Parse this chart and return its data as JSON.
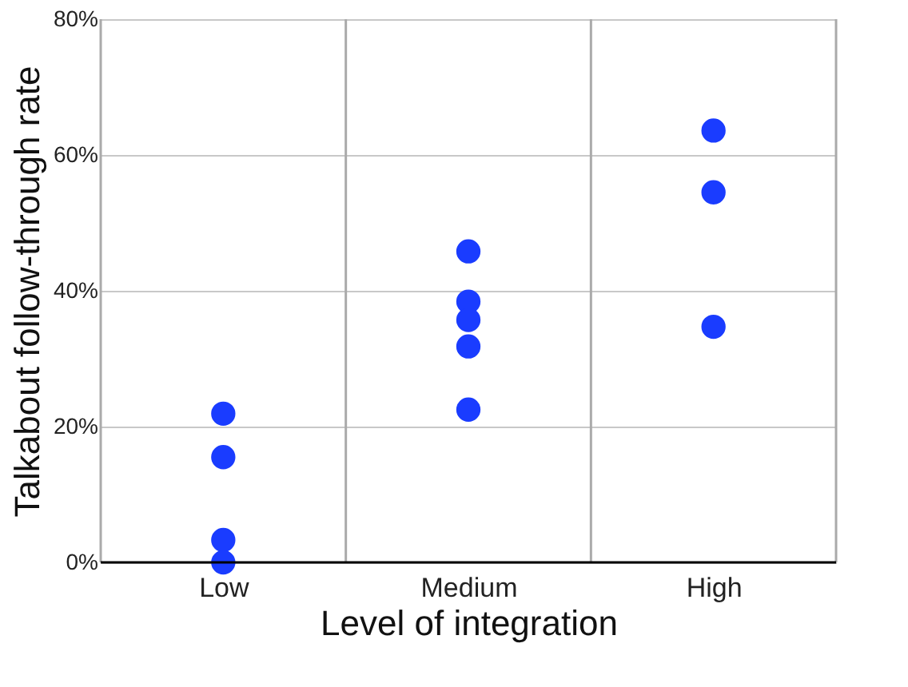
{
  "chart_data": {
    "type": "scatter",
    "xlabel": "Level of integration",
    "ylabel": "Talkabout follow-through rate",
    "categories": [
      "Low",
      "Medium",
      "High"
    ],
    "series": [
      {
        "color": "#1a3cff",
        "x": [
          "Low",
          "Low",
          "Low",
          "Low",
          "Medium",
          "Medium",
          "Medium",
          "Medium",
          "Medium",
          "High",
          "High",
          "High"
        ],
        "values": [
          21.9,
          15.5,
          3.3,
          0,
          45.8,
          38.4,
          35.7,
          31.8,
          22.5,
          63.6,
          54.5,
          34.7
        ]
      }
    ],
    "ylim": [
      0,
      80
    ],
    "yticks": [
      {
        "value": 0,
        "label": "0%"
      },
      {
        "value": 20,
        "label": "20%"
      },
      {
        "value": 40,
        "label": "40%"
      },
      {
        "value": 60,
        "label": "60%"
      },
      {
        "value": 80,
        "label": "80%"
      }
    ],
    "grid": true,
    "marker": "circle",
    "legend": false
  }
}
